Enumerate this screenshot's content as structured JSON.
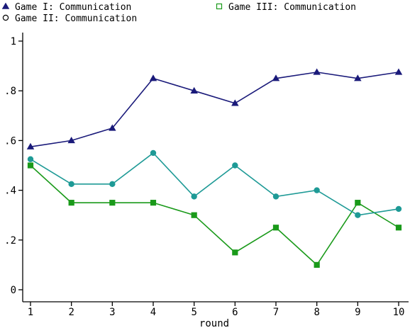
{
  "chart_data": {
    "type": "line",
    "title": "",
    "xlabel": "round",
    "ylabel": "",
    "x": [
      1,
      2,
      3,
      4,
      5,
      6,
      7,
      8,
      9,
      10
    ],
    "xlim": [
      1,
      10
    ],
    "ylim": [
      0,
      1
    ],
    "x_ticks": [
      "1",
      "2",
      "3",
      "4",
      "5",
      "6",
      "7",
      "8",
      "9",
      "10"
    ],
    "y_ticks": [
      "0",
      ".2",
      ".4",
      ".6",
      ".8",
      "1"
    ],
    "y_tick_values": [
      0,
      0.2,
      0.4,
      0.6,
      0.8,
      1
    ],
    "grid": false,
    "legend_position": "top",
    "series": [
      {
        "name": "Game I: Communication",
        "color": "#1a1a7a",
        "marker": "triangle",
        "values": [
          0.575,
          0.6,
          0.65,
          0.85,
          0.8,
          0.75,
          0.85,
          0.875,
          0.85,
          0.875
        ]
      },
      {
        "name": "Game II: Communication",
        "color": "#1e9a96",
        "marker": "circle",
        "values": [
          0.525,
          0.425,
          0.425,
          0.55,
          0.375,
          0.5,
          0.375,
          0.4,
          0.3,
          0.325
        ]
      },
      {
        "name": "Game III: Communication",
        "color": "#1a9a1a",
        "marker": "square",
        "values": [
          0.5,
          0.35,
          0.35,
          0.35,
          0.3,
          0.15,
          0.25,
          0.1,
          0.35,
          0.25
        ]
      }
    ]
  }
}
